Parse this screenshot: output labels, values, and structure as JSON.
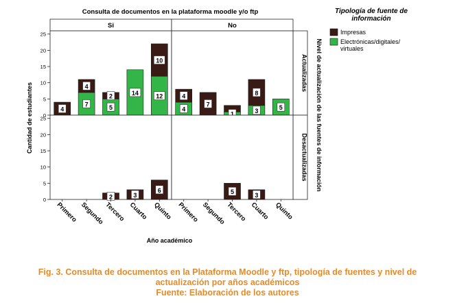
{
  "chart_data": {
    "type": "bar",
    "stacked": true,
    "title": "Consulta de documentos en la plataforma moodle y/o ftp",
    "xlabel": "Año académico",
    "ylabel": "Cantidad de estudiantes",
    "right_axis_label": "Nivel de actualización de las fuentes de información",
    "categories": [
      "Primero",
      "Segundo",
      "Tercero",
      "Cuarto",
      "Quinto"
    ],
    "ylim": [
      0,
      26
    ],
    "yticks": [
      "0",
      "5",
      "10",
      "15",
      "20",
      "25"
    ],
    "grid": false,
    "legend": {
      "title": "Tipología de fuente de información",
      "position": "top-right",
      "entries": [
        {
          "name": "Impresas",
          "color": "#3a1a14"
        },
        {
          "name": "Electrónicas/digitales/ virtuales",
          "color": "#33b548"
        }
      ]
    },
    "column_facets": [
      "Si",
      "No"
    ],
    "row_facets": [
      "Actualizadas",
      "Desactualizadas"
    ],
    "panels": [
      {
        "column": "Si",
        "row": "Actualizadas",
        "series": [
          {
            "name": "Electrónicas/digitales/ virtuales",
            "values": [
              0,
              7,
              5,
              14,
              12
            ],
            "labels": [
              "",
              "7",
              "5",
              "14",
              "12"
            ]
          },
          {
            "name": "Impresas",
            "values": [
              4,
              4,
              2,
              0,
              10
            ],
            "labels": [
              "4",
              "4",
              "2",
              "",
              "10"
            ]
          }
        ]
      },
      {
        "column": "No",
        "row": "Actualizadas",
        "series": [
          {
            "name": "Electrónicas/digitales/ virtuales",
            "values": [
              4,
              0,
              1,
              3,
              5
            ],
            "labels": [
              "4",
              "",
              "1",
              "3",
              "5"
            ]
          },
          {
            "name": "Impresas",
            "values": [
              4,
              7,
              2,
              8,
              0
            ],
            "labels": [
              "4",
              "7",
              "",
              "8",
              ""
            ]
          }
        ]
      },
      {
        "column": "Si",
        "row": "Desactualizadas",
        "series": [
          {
            "name": "Electrónicas/digitales/ virtuales",
            "values": [
              0,
              0,
              0,
              0,
              0
            ],
            "labels": [
              "",
              "",
              "",
              "",
              ""
            ]
          },
          {
            "name": "Impresas",
            "values": [
              0,
              0,
              2,
              3,
              6
            ],
            "labels": [
              "",
              "",
              "2",
              "3",
              "6"
            ]
          }
        ]
      },
      {
        "column": "No",
        "row": "Desactualizadas",
        "series": [
          {
            "name": "Electrónicas/digitales/ virtuales",
            "values": [
              0,
              0,
              0,
              0,
              0
            ],
            "labels": [
              "",
              "",
              "",
              "",
              ""
            ]
          },
          {
            "name": "Impresas",
            "values": [
              0,
              0,
              5,
              3,
              0
            ],
            "labels": [
              "",
              "",
              "5",
              "3",
              ""
            ]
          }
        ]
      }
    ]
  },
  "caption": {
    "line1": "Fig. 3. Consulta de documentos en la Plataforma Moodle y ftp, tipología de fuentes y nivel de",
    "line2": "actualización por años académicos",
    "line3": "Fuente: Elaboración de los autores"
  }
}
